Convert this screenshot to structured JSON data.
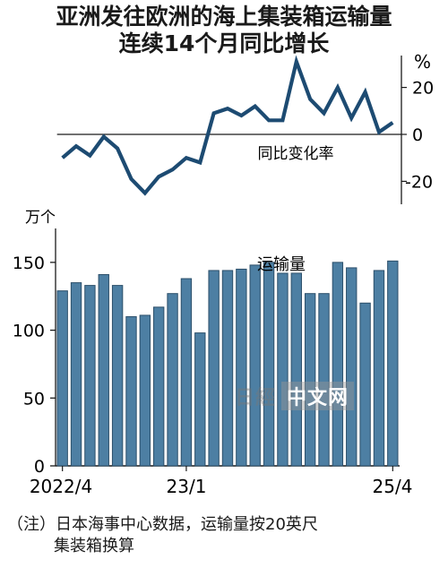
{
  "header": {
    "title_line1": "亚洲发往欧洲的海上集装箱运输量",
    "title_line2": "连续14个月同比增长"
  },
  "footnote": {
    "line1": "（注）日本海事中心数据，运输量按20英尺",
    "line2": "集装箱换算"
  },
  "watermark": {
    "brand": "日經",
    "box": "中文网"
  },
  "colors": {
    "bar": "#4d7fa3",
    "bar_edge": "#2c4f6a",
    "line": "#1d4b72",
    "axis": "#1a1a1a"
  },
  "chart_data": [
    {
      "type": "line",
      "unit_label": "%",
      "series_label": "同比变化率",
      "ylim": [
        -25,
        35
      ],
      "yticks": [
        20,
        0,
        -20
      ],
      "ytick_labels": [
        "20",
        "0",
        "-20"
      ],
      "values": [
        -10,
        -5,
        -9,
        -1,
        -6,
        -19,
        -25,
        -18,
        -15,
        -10,
        -12,
        9,
        11,
        8,
        12,
        6,
        6,
        31,
        15,
        9,
        20,
        7,
        18,
        1,
        5
      ]
    },
    {
      "type": "bar",
      "unit_label": "万个",
      "series_label": "运输量",
      "ylim": [
        0,
        175
      ],
      "yticks": [
        0,
        50,
        100,
        150
      ],
      "ytick_labels": [
        "0",
        "50",
        "100",
        "150"
      ],
      "xtick_labels": [
        {
          "index": 0,
          "label": "2022/4"
        },
        {
          "index": 9,
          "label": "23/1"
        },
        {
          "index": 36,
          "label": "25/4"
        }
      ],
      "values": [
        129,
        135,
        133,
        141,
        133,
        110,
        111,
        117,
        127,
        138,
        98,
        144,
        144,
        145,
        148,
        150,
        142,
        142,
        127,
        127,
        150,
        146,
        120,
        144,
        151
      ]
    }
  ]
}
